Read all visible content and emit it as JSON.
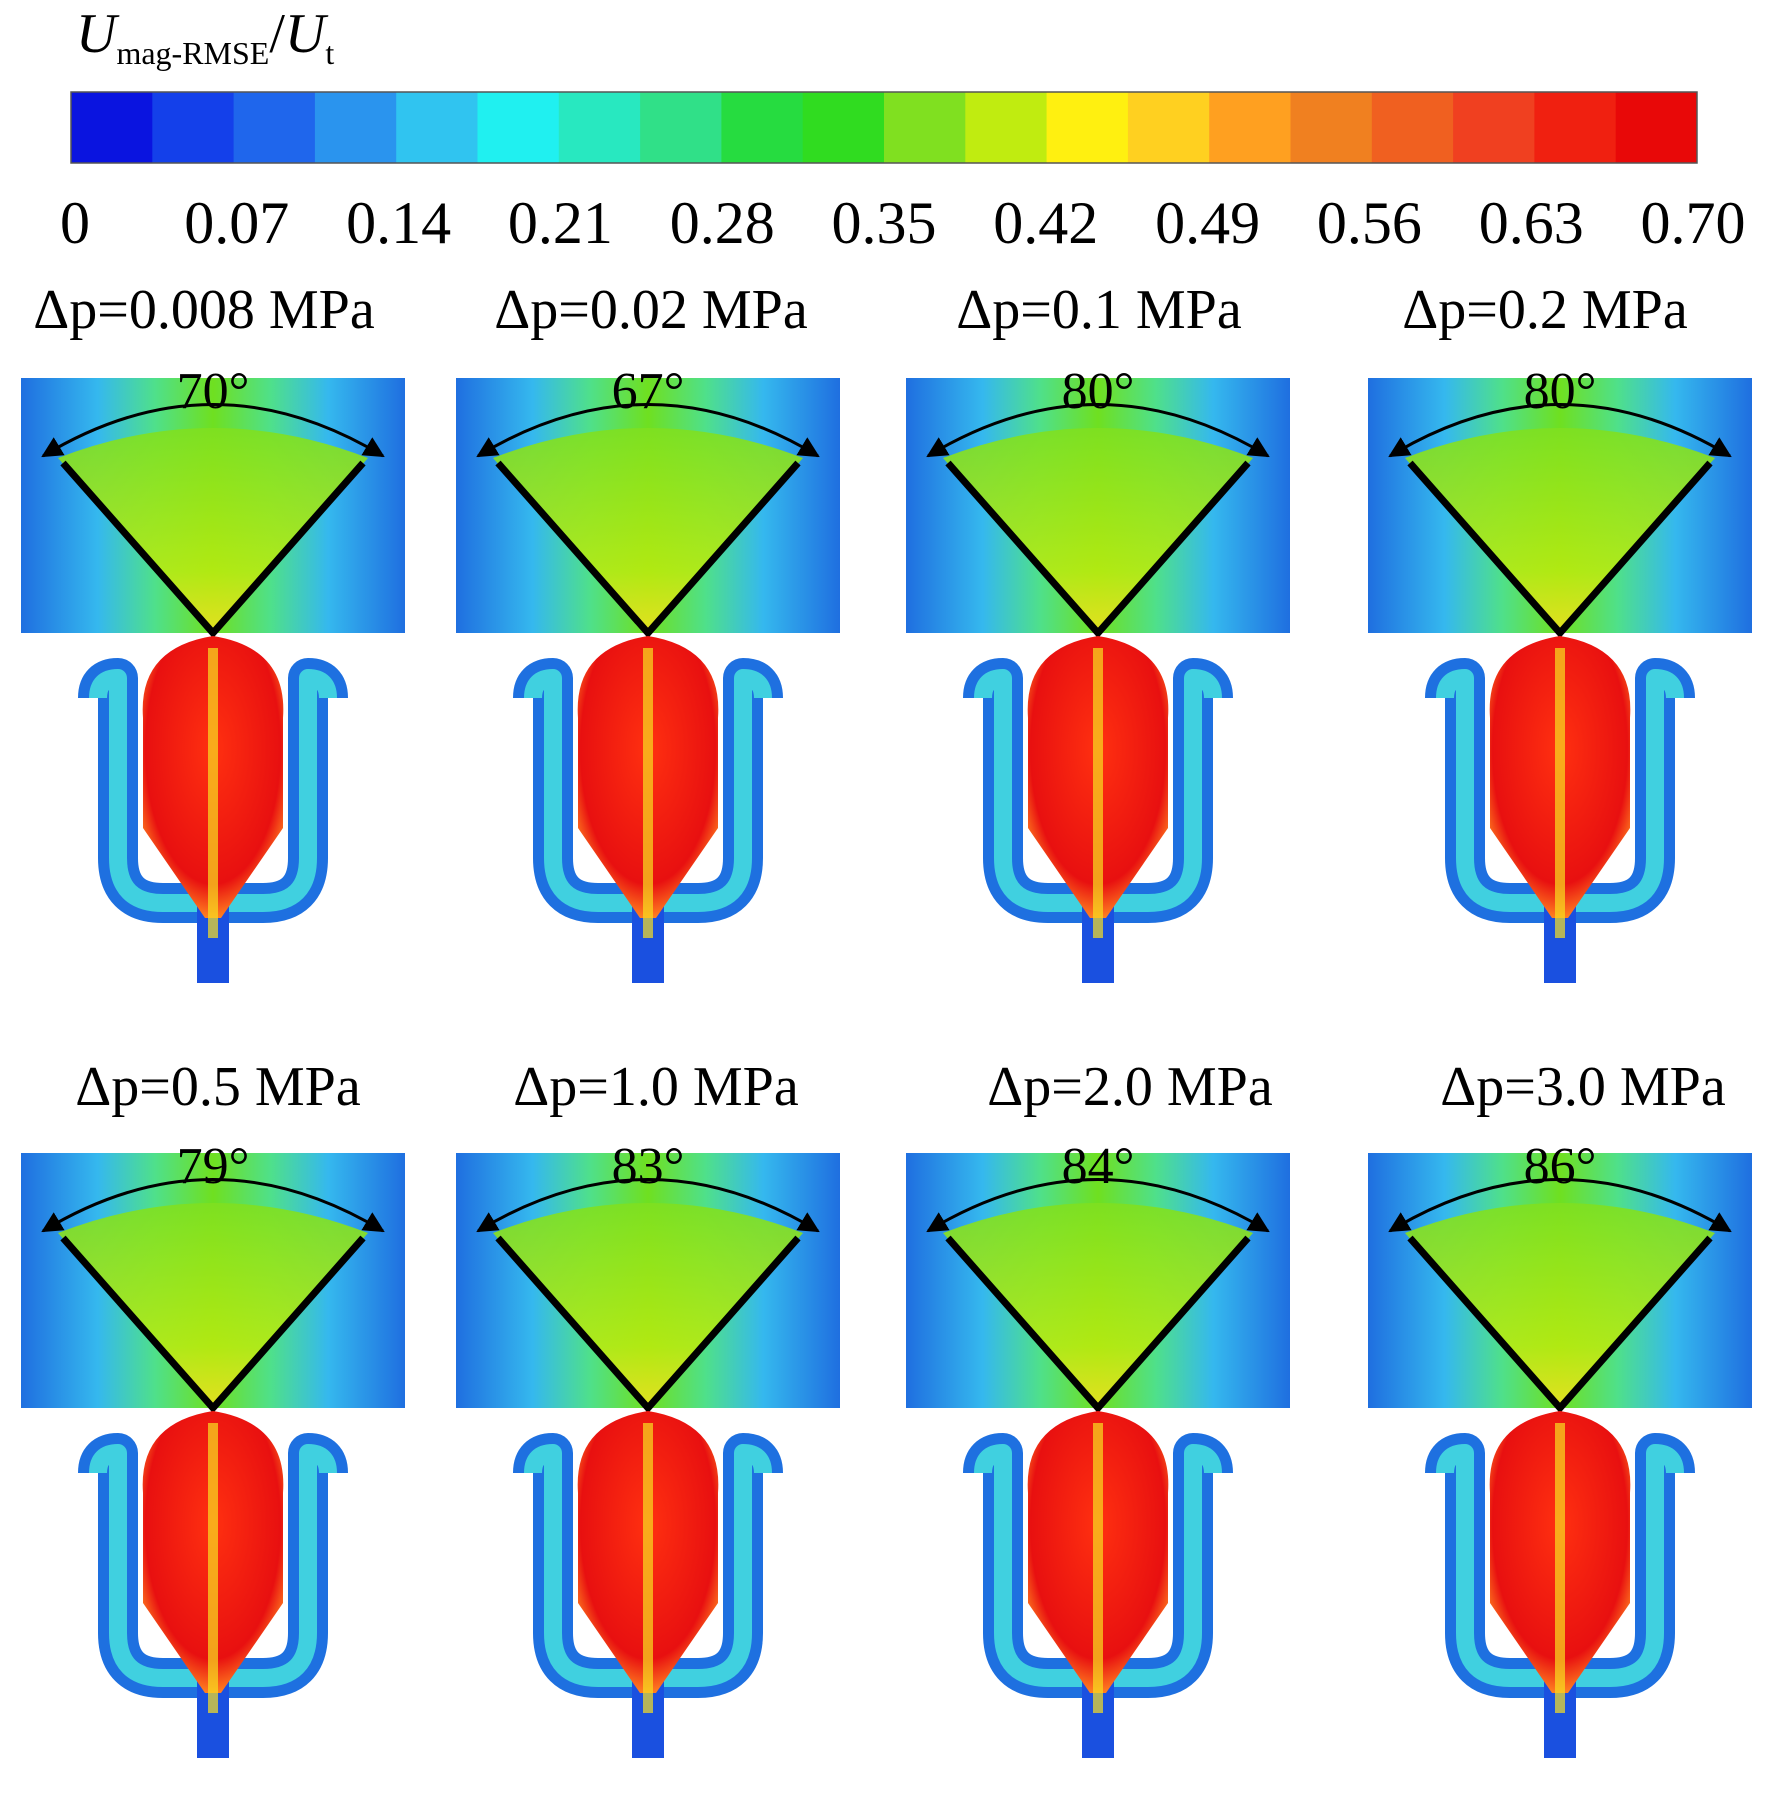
{
  "colorbar": {
    "label": {
      "symbol": "U",
      "subscript": "mag-RMSE",
      "slash": "/",
      "denominator": "U",
      "denominator_subscript": "t"
    },
    "ticks": [
      "0",
      "0.07",
      "0.14",
      "0.21",
      "0.28",
      "0.35",
      "0.42",
      "0.49",
      "0.56",
      "0.63",
      "0.70"
    ]
  },
  "panels": [
    {
      "title": "Δp=0.008 MPa",
      "angle": "70°"
    },
    {
      "title": "Δp=0.02 MPa",
      "angle": "67°"
    },
    {
      "title": "Δp=0.1 MPa",
      "angle": "80°"
    },
    {
      "title": "Δp=0.2 MPa",
      "angle": "80°"
    },
    {
      "title": "Δp=0.5 MPa",
      "angle": "79°"
    },
    {
      "title": "Δp=1.0 MPa",
      "angle": "83°"
    },
    {
      "title": "Δp=2.0 MPa",
      "angle": "84°"
    },
    {
      "title": "Δp=3.0 MPa",
      "angle": "86°"
    }
  ]
}
